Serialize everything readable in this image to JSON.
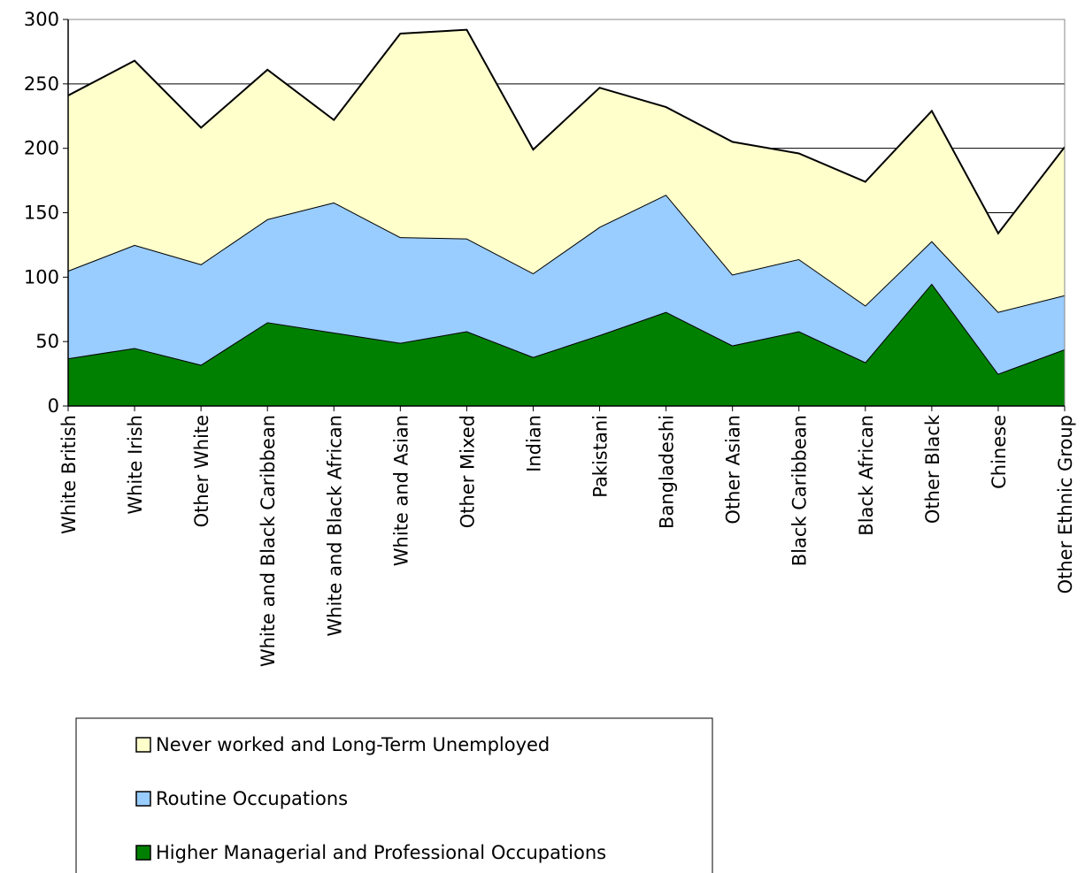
{
  "chart_data": {
    "type": "area",
    "stacked": true,
    "categories": [
      "White British",
      "White Irish",
      "Other White",
      "White and Black Caribbean",
      "White and Black African",
      "White and Asian",
      "Other Mixed",
      "Indian",
      "Pakistani",
      "Bangladeshi",
      "Other Asian",
      "Black Caribbean",
      "Black African",
      "Other Black",
      "Chinese",
      "Other Ethnic Group"
    ],
    "series": [
      {
        "name": "Higher Managerial and Professional Occupations",
        "color": "#008000",
        "values": [
          37,
          45,
          32,
          65,
          57,
          49,
          58,
          38,
          55,
          73,
          47,
          58,
          34,
          95,
          25,
          44
        ]
      },
      {
        "name": "Routine Occupations",
        "color": "#99ccff",
        "values": [
          68,
          80,
          78,
          80,
          101,
          82,
          72,
          65,
          84,
          91,
          55,
          56,
          44,
          33,
          48,
          42
        ]
      },
      {
        "name": "Never worked and Long-Term Unemployed",
        "color": "#ffffcc",
        "values": [
          136,
          143,
          106,
          116,
          64,
          158,
          162,
          96,
          108,
          68,
          103,
          82,
          96,
          101,
          61,
          115
        ]
      }
    ],
    "ylim": [
      0,
      300
    ],
    "yticks": [
      0,
      50,
      100,
      150,
      200,
      250,
      300
    ],
    "grid": true,
    "legend": "bottom-left"
  }
}
